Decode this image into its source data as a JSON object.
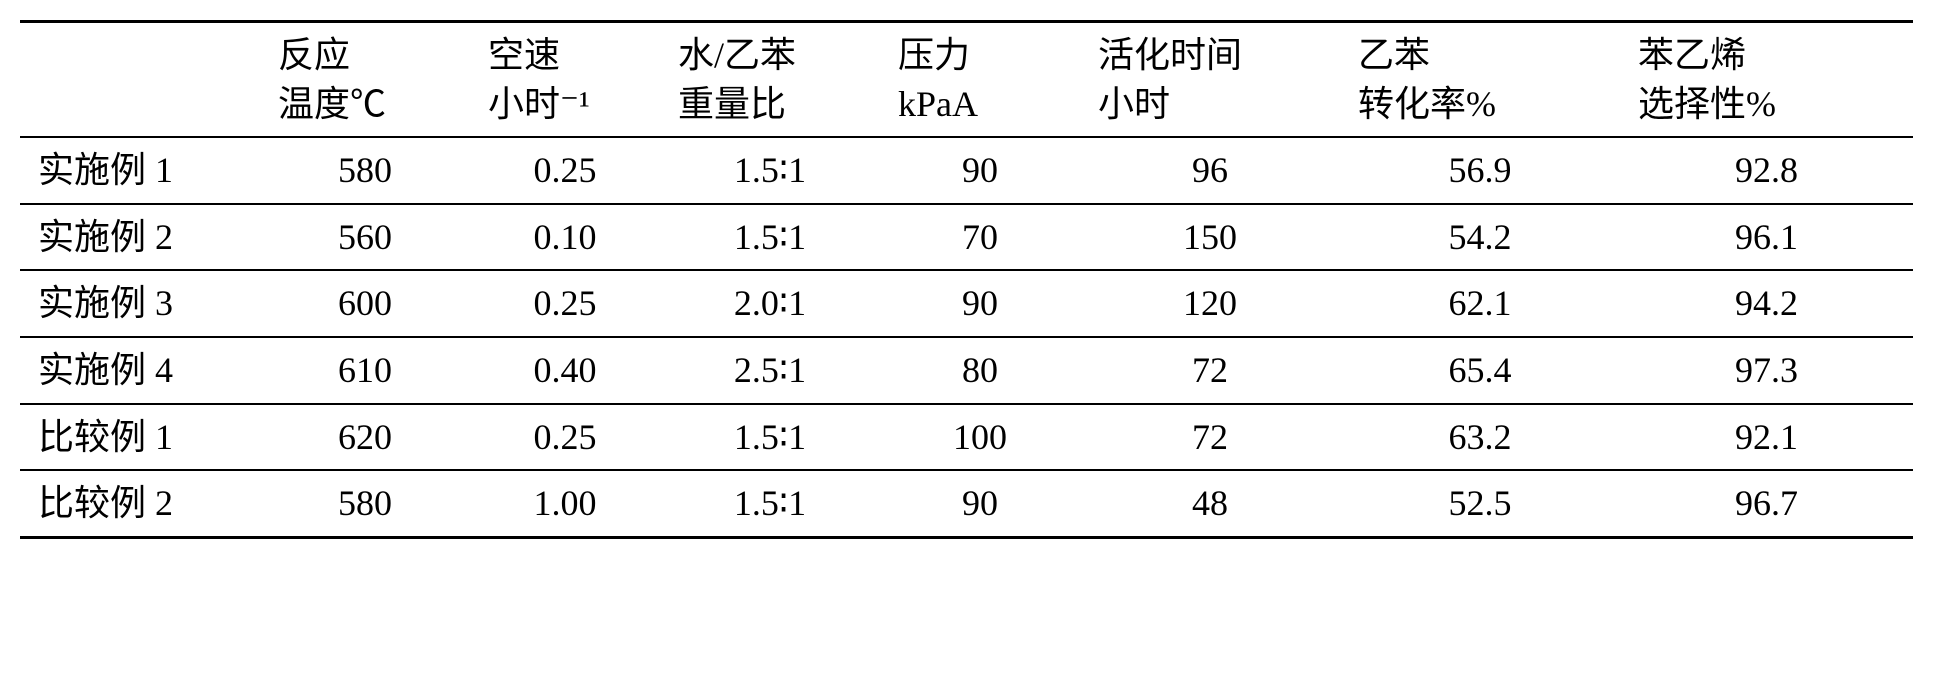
{
  "table": {
    "columns": [
      {
        "line1": "",
        "line2": ""
      },
      {
        "line1": "反应",
        "line2": "温度℃"
      },
      {
        "line1": "空速",
        "line2": "小时⁻¹"
      },
      {
        "line1": "水/乙苯",
        "line2": "重量比"
      },
      {
        "line1": "压力",
        "line2": "kPaA"
      },
      {
        "line1": "活化时间",
        "line2": "小时"
      },
      {
        "line1": "乙苯",
        "line2": "转化率%"
      },
      {
        "line1": "苯乙烯",
        "line2": "选择性%"
      }
    ],
    "rows": [
      {
        "label": "实施例 1",
        "cells": [
          "580",
          "0.25",
          "1.5∶1",
          "90",
          "96",
          "56.9",
          "92.8"
        ]
      },
      {
        "label": "实施例 2",
        "cells": [
          "560",
          "0.10",
          "1.5∶1",
          "70",
          "150",
          "54.2",
          "96.1"
        ]
      },
      {
        "label": "实施例 3",
        "cells": [
          "600",
          "0.25",
          "2.0∶1",
          "90",
          "120",
          "62.1",
          "94.2"
        ]
      },
      {
        "label": "实施例 4",
        "cells": [
          "610",
          "0.40",
          "2.5∶1",
          "80",
          "72",
          "65.4",
          "97.3"
        ]
      },
      {
        "label": "比较例 1",
        "cells": [
          "620",
          "0.25",
          "1.5∶1",
          "100",
          "72",
          "63.2",
          "92.1"
        ]
      },
      {
        "label": "比较例 2",
        "cells": [
          "580",
          "1.00",
          "1.5∶1",
          "90",
          "48",
          "52.5",
          "96.7"
        ]
      }
    ],
    "border_color": "#000000",
    "background_color": "#ffffff",
    "font_size_pt": 27
  }
}
